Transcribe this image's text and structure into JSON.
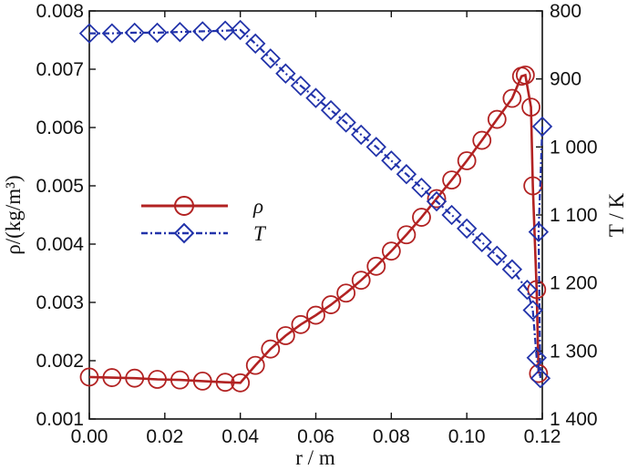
{
  "chart_data": {
    "type": "line",
    "xlabel": "r / m",
    "ylabel_left": "ρ/(kg/m³)",
    "ylabel_right": "T / K",
    "xlim": [
      0.0,
      0.12
    ],
    "ylim_left": [
      0.001,
      0.008
    ],
    "ylim_right_inverted": [
      800,
      1400
    ],
    "x_ticks": [
      "0.00",
      "0.02",
      "0.04",
      "0.06",
      "0.08",
      "0.10",
      "0.12"
    ],
    "y_left_ticks": [
      "0.001",
      "0.002",
      "0.003",
      "0.004",
      "0.005",
      "0.006",
      "0.007",
      "0.008"
    ],
    "y_right_ticks": [
      "800",
      "900",
      "1 000",
      "1 100",
      "1 200",
      "1 300",
      "1 400"
    ],
    "legend_position": "center-left",
    "grid": false,
    "series": [
      {
        "name": "ρ",
        "axis": "left",
        "color": "#b22222",
        "marker": "circle",
        "points": [
          [
            0.0,
            0.00172
          ],
          [
            0.006,
            0.00171
          ],
          [
            0.012,
            0.0017
          ],
          [
            0.018,
            0.00168
          ],
          [
            0.024,
            0.00167
          ],
          [
            0.03,
            0.00165
          ],
          [
            0.036,
            0.00163
          ],
          [
            0.04,
            0.00162
          ],
          [
            0.044,
            0.00192
          ],
          [
            0.048,
            0.0022
          ],
          [
            0.052,
            0.00243
          ],
          [
            0.056,
            0.00262
          ],
          [
            0.06,
            0.00278
          ],
          [
            0.064,
            0.00296
          ],
          [
            0.068,
            0.00316
          ],
          [
            0.072,
            0.00338
          ],
          [
            0.076,
            0.00362
          ],
          [
            0.08,
            0.00388
          ],
          [
            0.084,
            0.00416
          ],
          [
            0.088,
            0.00446
          ],
          [
            0.092,
            0.00478
          ],
          [
            0.096,
            0.0051
          ],
          [
            0.1,
            0.00543
          ],
          [
            0.104,
            0.00578
          ],
          [
            0.108,
            0.00614
          ],
          [
            0.112,
            0.0065
          ],
          [
            0.1145,
            0.00688
          ],
          [
            0.1155,
            0.0069
          ],
          [
            0.117,
            0.00635
          ],
          [
            0.1175,
            0.005
          ],
          [
            0.1185,
            0.00322
          ],
          [
            0.119,
            0.00178
          ]
        ]
      },
      {
        "name": "T",
        "axis": "right",
        "color": "#2233aa",
        "marker": "diamond",
        "points": [
          [
            0.0,
            833
          ],
          [
            0.006,
            833
          ],
          [
            0.012,
            832
          ],
          [
            0.018,
            832
          ],
          [
            0.024,
            831
          ],
          [
            0.03,
            830
          ],
          [
            0.036,
            829
          ],
          [
            0.04,
            828
          ],
          [
            0.044,
            848
          ],
          [
            0.048,
            870
          ],
          [
            0.052,
            892
          ],
          [
            0.056,
            910
          ],
          [
            0.06,
            928
          ],
          [
            0.064,
            946
          ],
          [
            0.068,
            964
          ],
          [
            0.072,
            982
          ],
          [
            0.076,
            1000
          ],
          [
            0.08,
            1020
          ],
          [
            0.084,
            1040
          ],
          [
            0.088,
            1060
          ],
          [
            0.092,
            1080
          ],
          [
            0.096,
            1100
          ],
          [
            0.1,
            1120
          ],
          [
            0.104,
            1140
          ],
          [
            0.108,
            1160
          ],
          [
            0.112,
            1180
          ],
          [
            0.116,
            1210
          ],
          [
            0.1175,
            1240
          ],
          [
            0.1185,
            1310
          ],
          [
            0.1195,
            1340
          ],
          [
            0.119,
            1125
          ],
          [
            0.12,
            970
          ]
        ]
      }
    ]
  }
}
